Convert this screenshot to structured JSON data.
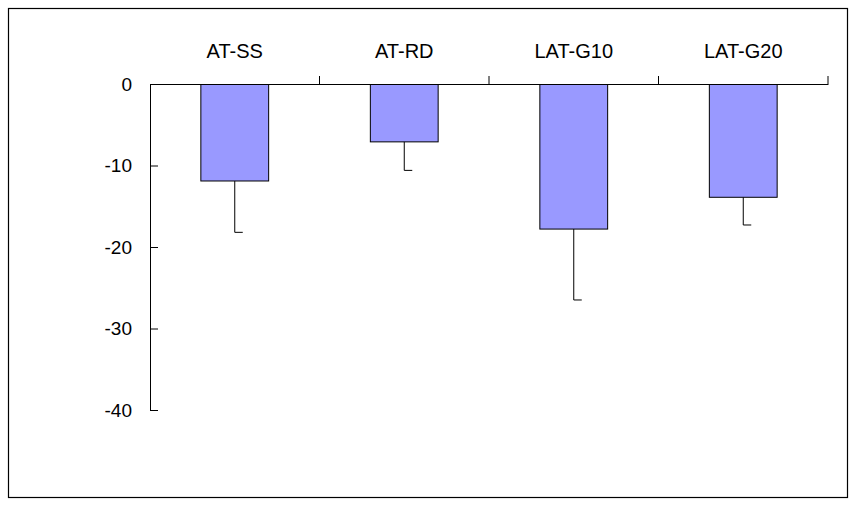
{
  "chart_data": {
    "type": "bar",
    "categories": [
      "AT-SS",
      "AT-RD",
      "LAT-G10",
      "LAT-G20"
    ],
    "values": [
      -11.9,
      -7.1,
      -17.8,
      -13.9
    ],
    "errors": [
      6.3,
      3.5,
      8.7,
      3.4
    ],
    "color": "#9999ff",
    "ylim": [
      -40,
      0
    ],
    "yticks": [
      0,
      -10,
      -20,
      -30,
      -40
    ]
  }
}
